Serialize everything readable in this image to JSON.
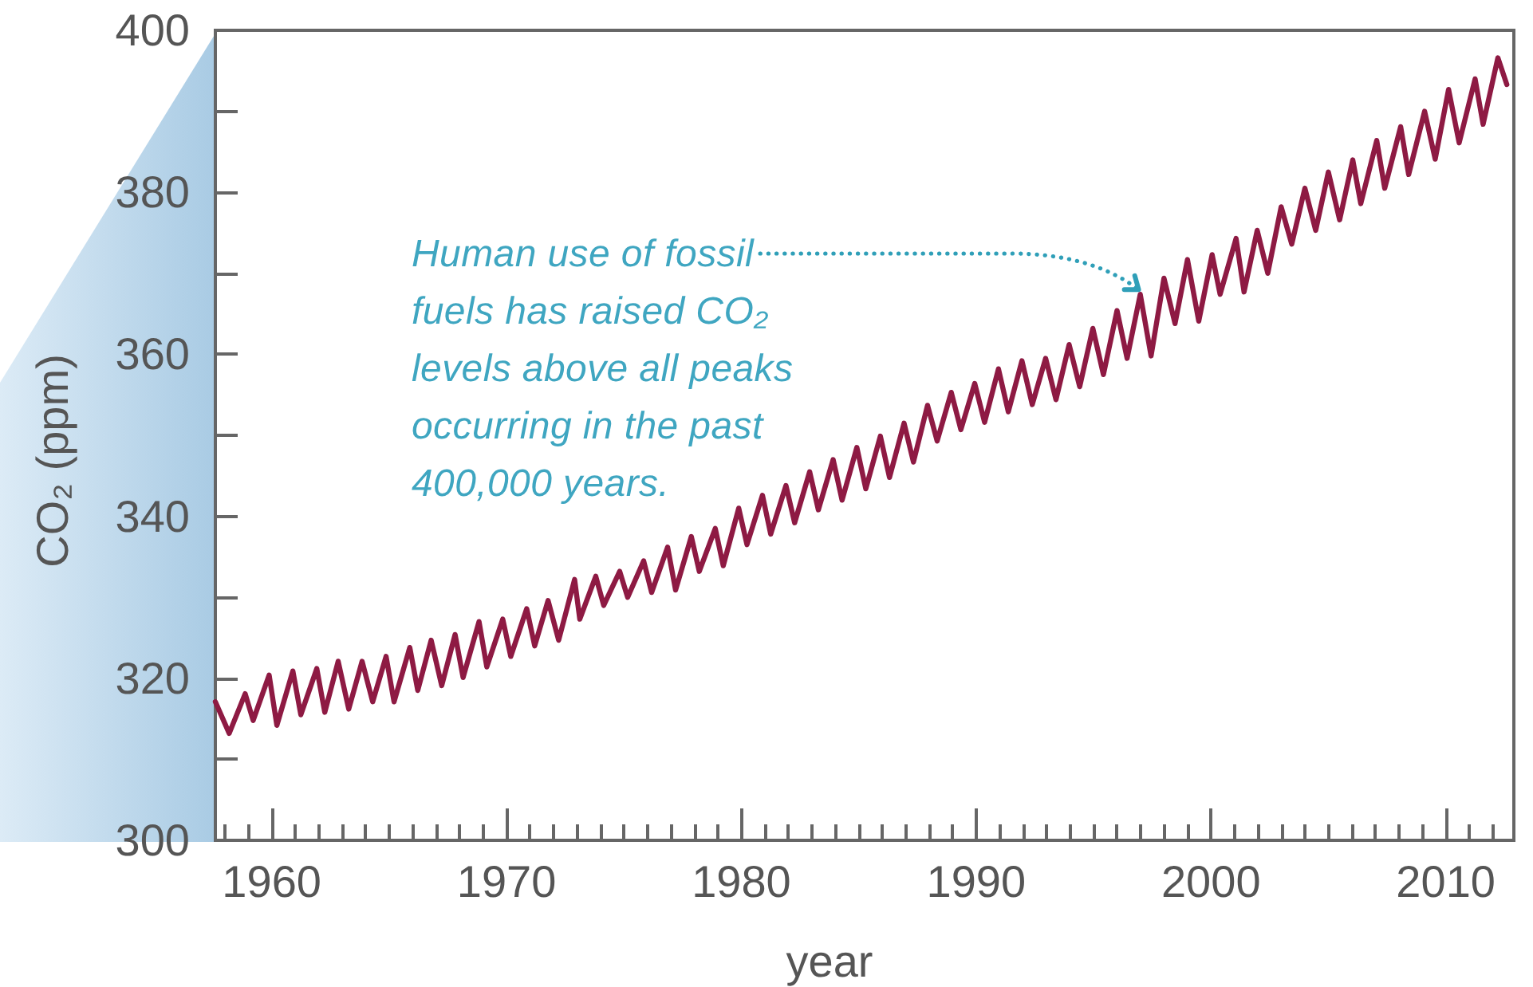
{
  "chart_data": {
    "type": "line",
    "xlabel": "year",
    "ylabel": "CO₂ (ppm)",
    "x": [
      1957.6,
      1958.19,
      1958.87,
      1959.21,
      1959.89,
      1960.22,
      1960.9,
      1961.24,
      1961.92,
      1962.26,
      1962.83,
      1963.28,
      1963.85,
      1964.3,
      1964.87,
      1965.21,
      1965.88,
      1966.22,
      1966.79,
      1967.24,
      1967.81,
      1968.15,
      1968.83,
      1969.16,
      1969.84,
      1970.18,
      1970.86,
      1971.2,
      1971.77,
      1972.22,
      1972.9,
      1973.12,
      1973.8,
      1974.14,
      1974.82,
      1975.16,
      1975.84,
      1976.18,
      1976.86,
      1977.2,
      1977.87,
      1978.21,
      1978.89,
      1979.23,
      1979.89,
      1980.24,
      1980.9,
      1981.25,
      1981.9,
      1982.27,
      1982.91,
      1983.28,
      1983.91,
      1984.29,
      1984.92,
      1985.3,
      1985.92,
      1986.31,
      1986.93,
      1987.33,
      1987.93,
      1988.34,
      1988.94,
      1989.35,
      1989.94,
      1990.36,
      1990.95,
      1991.37,
      1991.95,
      1992.39,
      1992.96,
      1993.4,
      1993.96,
      1994.41,
      1994.97,
      1995.42,
      1996.0,
      1996.43,
      1996.99,
      1997.45,
      1998.0,
      1998.47,
      1999.0,
      1999.48,
      2000.05,
      2000.39,
      2001.07,
      2001.41,
      2001.97,
      2002.42,
      2002.99,
      2003.44,
      2004.0,
      2004.46,
      2005.0,
      2005.48,
      2006.04,
      2006.38,
      2007.06,
      2007.4,
      2008.08,
      2008.42,
      2009.1,
      2009.55,
      2010.12,
      2010.57,
      2011.25,
      2011.59,
      2012.22,
      2012.6
    ],
    "series": [
      {
        "color": "#8e1a43",
        "values": [
          317.1,
          313.2,
          318.1,
          314.8,
          320.4,
          314.2,
          320.9,
          315.5,
          321.2,
          315.8,
          322.1,
          316.2,
          322.1,
          317.1,
          322.7,
          317.1,
          323.8,
          318.5,
          324.7,
          319.1,
          325.4,
          320.1,
          327.0,
          321.4,
          327.3,
          322.7,
          328.6,
          324.0,
          329.6,
          324.7,
          332.2,
          327.3,
          332.6,
          329.0,
          333.2,
          330.0,
          334.5,
          330.6,
          336.2,
          330.9,
          337.5,
          333.2,
          338.5,
          333.9,
          341.0,
          336.5,
          342.6,
          337.8,
          343.8,
          339.2,
          345.5,
          340.8,
          347.0,
          342.0,
          348.5,
          343.4,
          349.9,
          344.8,
          351.5,
          346.7,
          353.7,
          349.3,
          355.3,
          350.7,
          356.4,
          351.6,
          358.2,
          352.9,
          359.2,
          353.8,
          359.5,
          354.4,
          361.2,
          356.0,
          363.2,
          357.5,
          365.4,
          359.5,
          367.4,
          359.8,
          369.4,
          363.8,
          371.7,
          364.1,
          372.3,
          367.4,
          374.3,
          367.7,
          375.3,
          370.0,
          378.2,
          373.6,
          380.5,
          375.3,
          382.5,
          376.6,
          384.0,
          378.6,
          386.4,
          380.5,
          388.1,
          382.2,
          390.0,
          384.1,
          392.7,
          386.1,
          394.0,
          388.4,
          396.6,
          393.3
        ]
      }
    ],
    "xlim": [
      1957.6,
      2012.9
    ],
    "ylim": [
      300,
      400
    ],
    "xticks": [
      {
        "value": 1958,
        "label": null
      },
      {
        "value": 1959,
        "label": null
      },
      1960,
      {
        "value": 1961,
        "label": null
      },
      {
        "value": 1962,
        "label": null
      },
      {
        "value": 1963,
        "label": null
      },
      {
        "value": 1964,
        "label": null
      },
      {
        "value": 1965,
        "label": null
      },
      {
        "value": 1966,
        "label": null
      },
      {
        "value": 1967,
        "label": null
      },
      {
        "value": 1968,
        "label": null
      },
      {
        "value": 1969,
        "label": null
      },
      1970,
      {
        "value": 1971,
        "label": null
      },
      {
        "value": 1972,
        "label": null
      },
      {
        "value": 1973,
        "label": null
      },
      {
        "value": 1974,
        "label": null
      },
      {
        "value": 1975,
        "label": null
      },
      {
        "value": 1976,
        "label": null
      },
      {
        "value": 1977,
        "label": null
      },
      {
        "value": 1978,
        "label": null
      },
      {
        "value": 1979,
        "label": null
      },
      1980,
      {
        "value": 1981,
        "label": null
      },
      {
        "value": 1982,
        "label": null
      },
      {
        "value": 1983,
        "label": null
      },
      {
        "value": 1984,
        "label": null
      },
      {
        "value": 1985,
        "label": null
      },
      {
        "value": 1986,
        "label": null
      },
      {
        "value": 1987,
        "label": null
      },
      {
        "value": 1988,
        "label": null
      },
      {
        "value": 1989,
        "label": null
      },
      1990,
      {
        "value": 1991,
        "label": null
      },
      {
        "value": 1992,
        "label": null
      },
      {
        "value": 1993,
        "label": null
      },
      {
        "value": 1994,
        "label": null
      },
      {
        "value": 1995,
        "label": null
      },
      {
        "value": 1996,
        "label": null
      },
      {
        "value": 1997,
        "label": null
      },
      {
        "value": 1998,
        "label": null
      },
      {
        "value": 1999,
        "label": null
      },
      2000,
      {
        "value": 2001,
        "label": null
      },
      {
        "value": 2002,
        "label": null
      },
      {
        "value": 2003,
        "label": null
      },
      {
        "value": 2004,
        "label": null
      },
      {
        "value": 2005,
        "label": null
      },
      {
        "value": 2006,
        "label": null
      },
      {
        "value": 2007,
        "label": null
      },
      {
        "value": 2008,
        "label": null
      },
      {
        "value": 2009,
        "label": null
      },
      2010,
      {
        "value": 2011,
        "label": null
      },
      {
        "value": 2012,
        "label": null
      }
    ],
    "yticks": [
      300,
      {
        "value": 310,
        "label": null
      },
      320,
      {
        "value": 330,
        "label": null
      },
      340,
      {
        "value": 350,
        "label": null
      },
      360,
      {
        "value": 370,
        "label": null
      },
      380,
      {
        "value": 390,
        "label": null
      },
      400
    ],
    "annotations": [
      {
        "text": "Human use of fossil\nfuels has raised CO₂\nlevels above all peaks\noccurring in the past\n400,000 years.",
        "x": 1996.99,
        "y": 367.4
      }
    ],
    "marker": "none",
    "line_style": "solid",
    "grid": false
  }
}
